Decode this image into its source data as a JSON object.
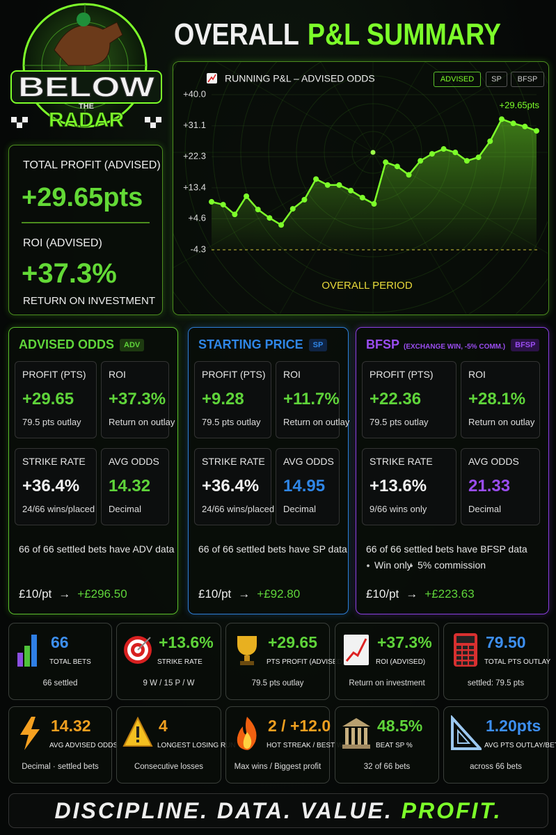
{
  "header": {
    "logo_top": "BELOW",
    "logo_middle": "THE",
    "logo_bottom": "RADAR",
    "title": "OVERALL",
    "title_highlight": "P&L SUMMARY"
  },
  "summary": {
    "profit_label": "TOTAL PROFIT (ADVISED)",
    "profit": "+29.65pts",
    "roi_label": "ROI (ADVISED)",
    "roi": "+37.3%",
    "roi_caption": "RETURN ON INVESTMENT"
  },
  "chart_controls": [
    "ADVISED",
    "SP",
    "BFSP"
  ],
  "chart_data": {
    "type": "line",
    "title": "RUNNING P&L – ADVISED ODDS",
    "x_label": "OVERALL PERIOD",
    "categories": [
      null,
      null,
      null,
      null,
      null,
      null,
      null,
      null,
      null,
      null,
      null,
      null,
      null,
      null,
      null,
      null,
      null,
      null,
      null,
      null,
      null,
      null,
      null,
      null,
      null,
      null,
      null,
      null,
      null
    ],
    "values": [
      9.4,
      8.6,
      5.8,
      11.0,
      7.2,
      4.8,
      2.8,
      7.4,
      10.0,
      15.9,
      14.2,
      14.2,
      12.6,
      10.6,
      8.8,
      20.7,
      19.5,
      17.1,
      21.1,
      23.1,
      24.5,
      23.5,
      21.1,
      22.1,
      26.7,
      33.0,
      31.8,
      30.9,
      29.65
    ],
    "value_labels": [
      null,
      null,
      null,
      null,
      null,
      null,
      null,
      null,
      null,
      null,
      null,
      null,
      null,
      null,
      null,
      null,
      null,
      null,
      null,
      null,
      null,
      null,
      null,
      null,
      null,
      null,
      null,
      null,
      "+29.65pts"
    ],
    "color": "#7dff2a",
    "ylim": [
      -4.3,
      40.0
    ],
    "yticks": [
      -4.3,
      {
        "value": 4.6,
        "label": "+4.6"
      },
      {
        "value": 13.4,
        "label": "+13.4"
      },
      {
        "value": 22.3,
        "label": "+22.3"
      },
      {
        "value": 31.1,
        "label": "+31.1"
      },
      {
        "value": 40.0,
        "label": "+40.0"
      }
    ],
    "grid": true
  },
  "panels": [
    {
      "title": "ADVISED ODDS",
      "badge": "ADV",
      "metrics": [
        {
          "label": "PROFIT (PTS)",
          "value": "+29.65",
          "note": "79.5 pts outlay"
        },
        {
          "label": "ROI",
          "value": "+37.3%",
          "note": "Return on outlay"
        },
        {
          "label": "STRIKE RATE",
          "value": "+36.4%",
          "note": "24/66 wins/placed"
        },
        {
          "label": "AVG ODDS",
          "value": "14.32",
          "note": "Decimal"
        }
      ],
      "coverage": "66 of 66 settled bets have ADV data",
      "stake": "£10/pt",
      "arrow": "→",
      "return": "+£296.50"
    },
    {
      "title": "STARTING PRICE",
      "badge": "SP",
      "metrics": [
        {
          "label": "PROFIT (PTS)",
          "value": "+9.28",
          "note": "79.5 pts outlay"
        },
        {
          "label": "ROI",
          "value": "+11.7%",
          "note": "Return on outlay"
        },
        {
          "label": "STRIKE RATE",
          "value": "+36.4%",
          "note": "24/66 wins/placed"
        },
        {
          "label": "AVG ODDS",
          "value": "14.95",
          "note": "Decimal"
        }
      ],
      "coverage": "66 of 66 settled bets have SP data",
      "stake": "£10/pt",
      "arrow": "→",
      "return": "+£92.80"
    },
    {
      "title": "BFSP",
      "subtitle": "(EXCHANGE WIN, -5% COMM.)",
      "badge": "BFSP",
      "metrics": [
        {
          "label": "PROFIT (PTS)",
          "value": "+22.36",
          "note": "79.5 pts outlay"
        },
        {
          "label": "ROI",
          "value": "+28.1%",
          "note": "Return on outlay"
        },
        {
          "label": "STRIKE RATE",
          "value": "+13.6%",
          "note": "9/66 wins only"
        },
        {
          "label": "AVG ODDS",
          "value": "21.33",
          "note": "Decimal"
        }
      ],
      "coverage": "66 of 66 settled bets have BFSP data",
      "notes": [
        "Win only",
        "5% commission"
      ],
      "stake": "£10/pt",
      "arrow": "→",
      "return": "+£223.63"
    }
  ],
  "stats": [
    {
      "value": "66",
      "label": "TOTAL BETS",
      "note": "66 settled"
    },
    {
      "value": "+13.6%",
      "label": "STRIKE RATE",
      "note": "9 W / 15 P / W"
    },
    {
      "value": "+29.65",
      "label": "PTS PROFIT (ADVISED)",
      "note": "79.5 pts outlay"
    },
    {
      "value": "+37.3%",
      "label": "ROI (ADVISED)",
      "note": "Return on investment"
    },
    {
      "value": "79.50",
      "label": "TOTAL PTS OUTLAY",
      "note": "settled: 79.5 pts"
    },
    {
      "value": "14.32",
      "label": "AVG ADVISED ODDS",
      "note": "Decimal · settled bets"
    },
    {
      "value": "4",
      "label": "LONGEST LOSING RUN",
      "note": "Consecutive losses"
    },
    {
      "value": "2 / +12.0",
      "label": "HOT STREAK / BEST WIN",
      "note": "Max wins / Biggest profit"
    },
    {
      "value": "48.5%",
      "label": "BEAT SP %",
      "note": "32 of 66 bets"
    },
    {
      "value": "1.20pts",
      "label": "AVG PTS OUTLAY/BET",
      "note": "across 66 bets"
    }
  ],
  "footer": {
    "text": "DISCIPLINE. DATA. VALUE.",
    "highlight": "PROFIT."
  }
}
